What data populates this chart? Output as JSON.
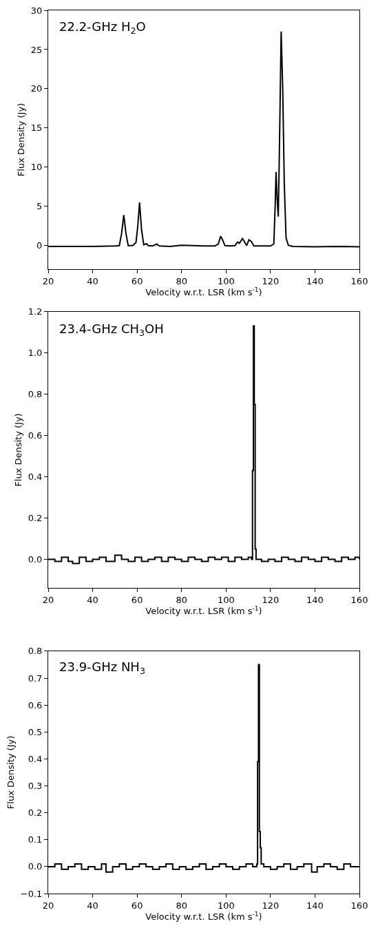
{
  "chart_data": [
    {
      "type": "line",
      "title": "22.2-GHz H$_{2}$O",
      "xlabel": "Velocity w.r.t. LSR (km s$^{-1}$)",
      "ylabel": "Flux Density (Jy)",
      "xlim": [
        20,
        160
      ],
      "xticks": [
        20,
        40,
        60,
        80,
        100,
        120,
        140,
        160
      ],
      "ylim": [
        -3,
        30
      ],
      "yticks": [
        0,
        5,
        10,
        15,
        20,
        25,
        30
      ],
      "series": [
        {
          "color": "#000000",
          "x": [
            20,
            30,
            40,
            50,
            52,
            53,
            54,
            55,
            56,
            58,
            59.5,
            60.3,
            61.1,
            62,
            63,
            64.2,
            65,
            67,
            68.8,
            70,
            75,
            80,
            85,
            90,
            95,
            96.5,
            97.6,
            98.5,
            99.5,
            102,
            104,
            105.2,
            106,
            107.4,
            108.5,
            109.3,
            110.3,
            111.5,
            112.5,
            115,
            120,
            121.5,
            122.1,
            122.5,
            123,
            123.5,
            124,
            124.8,
            125.5,
            126.2,
            127,
            128,
            130,
            140,
            150,
            160
          ],
          "values": [
            -0.1,
            -0.1,
            -0.1,
            -0.05,
            0,
            1.5,
            3.9,
            1.5,
            0,
            0,
            0.4,
            2.5,
            5.5,
            2,
            0.1,
            0.25,
            0,
            -0.05,
            0.2,
            -0.05,
            -0.1,
            0.05,
            0,
            -0.05,
            -0.05,
            0.2,
            1.2,
            0.7,
            0,
            -0.05,
            0,
            0.45,
            0.3,
            0.9,
            0.4,
            0,
            0.75,
            0.5,
            -0.05,
            -0.05,
            -0.05,
            0.2,
            5,
            9.4,
            6,
            3.7,
            12,
            27.3,
            20,
            8,
            1,
            0.05,
            -0.1,
            -0.15,
            -0.1,
            -0.15
          ]
        }
      ]
    },
    {
      "type": "step",
      "title": "23.4-GHz CH$_{3}$OH",
      "xlabel": "Velocity w.r.t. LSR (km s$^{-1}$)",
      "ylabel": "Flux Density (Jy)",
      "xlim": [
        20,
        160
      ],
      "xticks": [
        20,
        40,
        60,
        80,
        100,
        120,
        140,
        160
      ],
      "ylim": [
        -0.14,
        1.2
      ],
      "yticks": [
        {
          "value": 0,
          "label": "0.0"
        },
        {
          "value": 0.2,
          "label": "0.2"
        },
        {
          "value": 0.4,
          "label": "0.4"
        },
        {
          "value": 0.6,
          "label": "0.6"
        },
        {
          "value": 0.8,
          "label": "0.8"
        },
        {
          "value": 1.0,
          "label": "1.0"
        },
        {
          "value": 1.2,
          "label": "1.2"
        }
      ],
      "series": [
        {
          "color": "#000000",
          "x": [
            20,
            23,
            26,
            29,
            31,
            34,
            37,
            40,
            43,
            46,
            50,
            53,
            56,
            59,
            62,
            65,
            68,
            71,
            74,
            77,
            80,
            83,
            86,
            89,
            92,
            95,
            98,
            101,
            104,
            107,
            110,
            111.5,
            111.9,
            112.3,
            112.7,
            113.1,
            113.5,
            116,
            119,
            122,
            125,
            128,
            131,
            134,
            137,
            140,
            143,
            146,
            149,
            152,
            155,
            158,
            160
          ],
          "values": [
            0.0,
            -0.01,
            0.01,
            -0.01,
            -0.02,
            0.01,
            -0.01,
            0.0,
            0.01,
            -0.01,
            0.02,
            0.0,
            -0.01,
            0.01,
            -0.01,
            0.0,
            0.01,
            -0.01,
            0.01,
            0.0,
            -0.01,
            0.01,
            0.0,
            -0.01,
            0.01,
            0.0,
            0.01,
            -0.01,
            0.01,
            0.0,
            0.01,
            0.0,
            0.43,
            1.13,
            0.75,
            0.05,
            0.0,
            -0.01,
            0.0,
            -0.01,
            0.01,
            0.0,
            -0.01,
            0.01,
            0.0,
            -0.01,
            0.01,
            0.0,
            -0.01,
            0.01,
            0.0,
            0.01,
            0.0
          ]
        }
      ]
    },
    {
      "type": "step",
      "title": "23.9-GHz NH$_{3}$",
      "xlabel": "Velocity w.r.t. LSR (km s$^{-1}$)",
      "ylabel": "Flux Density (Jy)",
      "xlim": [
        20,
        160
      ],
      "xticks": [
        20,
        40,
        60,
        80,
        100,
        120,
        140,
        160
      ],
      "ylim": [
        -0.1,
        0.8
      ],
      "yticks": [
        {
          "value": -0.1,
          "label": "−0.1"
        },
        {
          "value": 0,
          "label": "0.0"
        },
        {
          "value": 0.1,
          "label": "0.1"
        },
        {
          "value": 0.2,
          "label": "0.2"
        },
        {
          "value": 0.3,
          "label": "0.3"
        },
        {
          "value": 0.4,
          "label": "0.4"
        },
        {
          "value": 0.5,
          "label": "0.5"
        },
        {
          "value": 0.6,
          "label": "0.6"
        },
        {
          "value": 0.7,
          "label": "0.7"
        },
        {
          "value": 0.8,
          "label": "0.8"
        }
      ],
      "series": [
        {
          "color": "#000000",
          "x": [
            20,
            23,
            26,
            29,
            32,
            35,
            38,
            41,
            44,
            46,
            49,
            52,
            55,
            58,
            61,
            64,
            67,
            70,
            73,
            76,
            79,
            82,
            85,
            88,
            91,
            94,
            97,
            100,
            103,
            106,
            109,
            112,
            113.8,
            114.2,
            114.6,
            115.0,
            115.4,
            115.8,
            117,
            120,
            123,
            126,
            129,
            132,
            135,
            138.5,
            141,
            144,
            147,
            150,
            153,
            156,
            160
          ],
          "values": [
            0.0,
            0.01,
            -0.01,
            0.0,
            0.01,
            -0.01,
            0.0,
            -0.01,
            0.01,
            -0.02,
            0.0,
            0.01,
            -0.01,
            0.0,
            0.01,
            0.0,
            -0.01,
            0.0,
            0.01,
            -0.01,
            0.0,
            -0.01,
            0.0,
            0.01,
            -0.01,
            0.0,
            0.01,
            0.0,
            -0.01,
            0.0,
            0.01,
            0.0,
            0.01,
            0.39,
            0.75,
            0.13,
            0.07,
            0.01,
            0.0,
            -0.01,
            0.0,
            0.01,
            -0.01,
            0.0,
            0.01,
            -0.02,
            0.0,
            0.01,
            0.0,
            -0.01,
            0.01,
            0.0,
            0.0
          ]
        }
      ]
    }
  ]
}
